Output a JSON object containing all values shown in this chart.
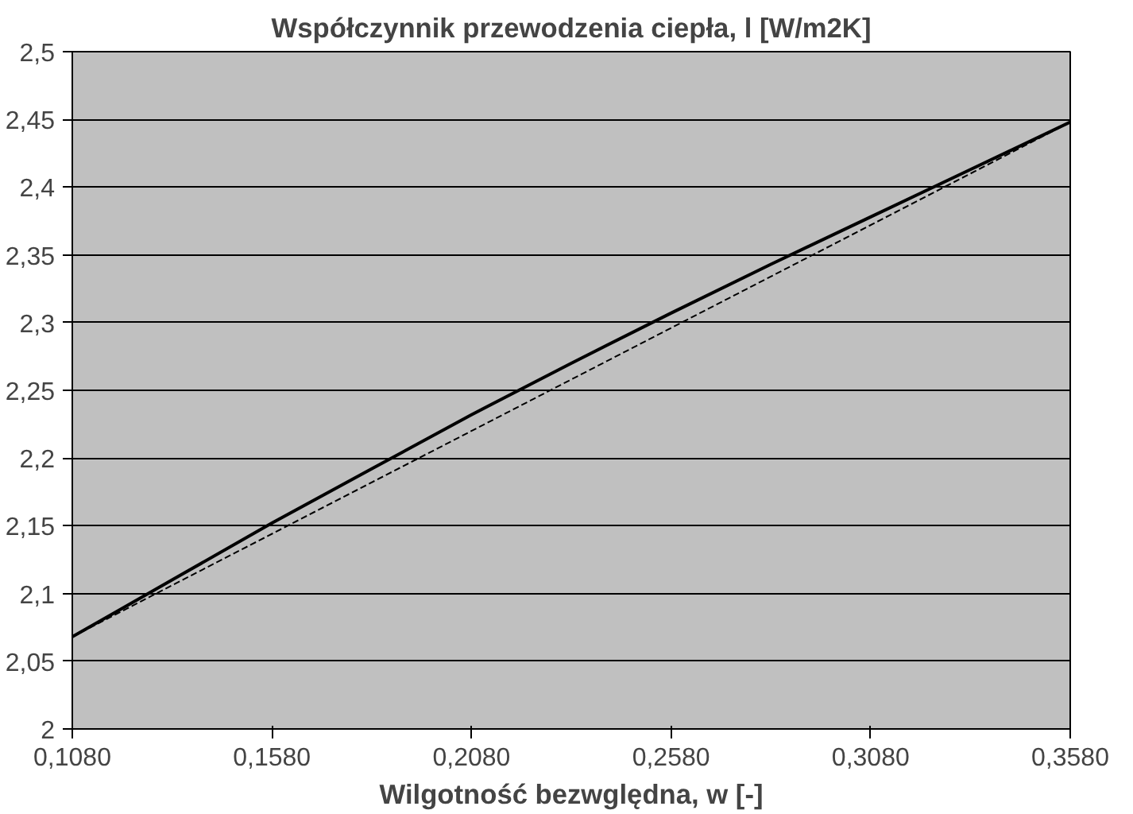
{
  "chart_data": {
    "type": "line",
    "title": "Współczynnik przewodzenia ciepła, l [W/m2K]",
    "xlabel": "Wilgotność bezwględna, w [-]",
    "xlim": [
      0.108,
      0.358
    ],
    "xticks": [
      {
        "value": 0.108,
        "label": "0,1080"
      },
      {
        "value": 0.158,
        "label": "0,1580"
      },
      {
        "value": 0.208,
        "label": "0,2080"
      },
      {
        "value": 0.258,
        "label": "0,2580"
      },
      {
        "value": 0.308,
        "label": "0,3080"
      },
      {
        "value": 0.358,
        "label": "0,3580"
      }
    ],
    "ylim": [
      2,
      2.5
    ],
    "yticks": [
      2,
      {
        "value": 2.05,
        "label": "2,05"
      },
      {
        "value": 2.1,
        "label": "2,1"
      },
      {
        "value": 2.15,
        "label": "2,15"
      },
      {
        "value": 2.2,
        "label": "2,2"
      },
      {
        "value": 2.25,
        "label": "2,25"
      },
      {
        "value": 2.3,
        "label": "2,3"
      },
      {
        "value": 2.35,
        "label": "2,35"
      },
      {
        "value": 2.4,
        "label": "2,4"
      },
      {
        "value": 2.45,
        "label": "2,45"
      },
      {
        "value": 2.5,
        "label": "2,5"
      }
    ],
    "grid": "y",
    "marker": "none",
    "series": [
      {
        "color": "#000000",
        "line_style": "solid",
        "x": [
          0.108,
          0.133,
          0.158,
          0.183,
          0.208,
          0.233,
          0.258,
          0.283,
          0.308,
          0.333,
          0.358
        ],
        "values": [
          2.068,
          2.11,
          2.152,
          2.192,
          2.232,
          2.27,
          2.307,
          2.343,
          2.378,
          2.413,
          2.448
        ]
      },
      {
        "color": "#000000",
        "line_style": "dashed",
        "x": [
          0.108,
          0.358
        ],
        "values": [
          2.068,
          2.448
        ]
      }
    ]
  }
}
